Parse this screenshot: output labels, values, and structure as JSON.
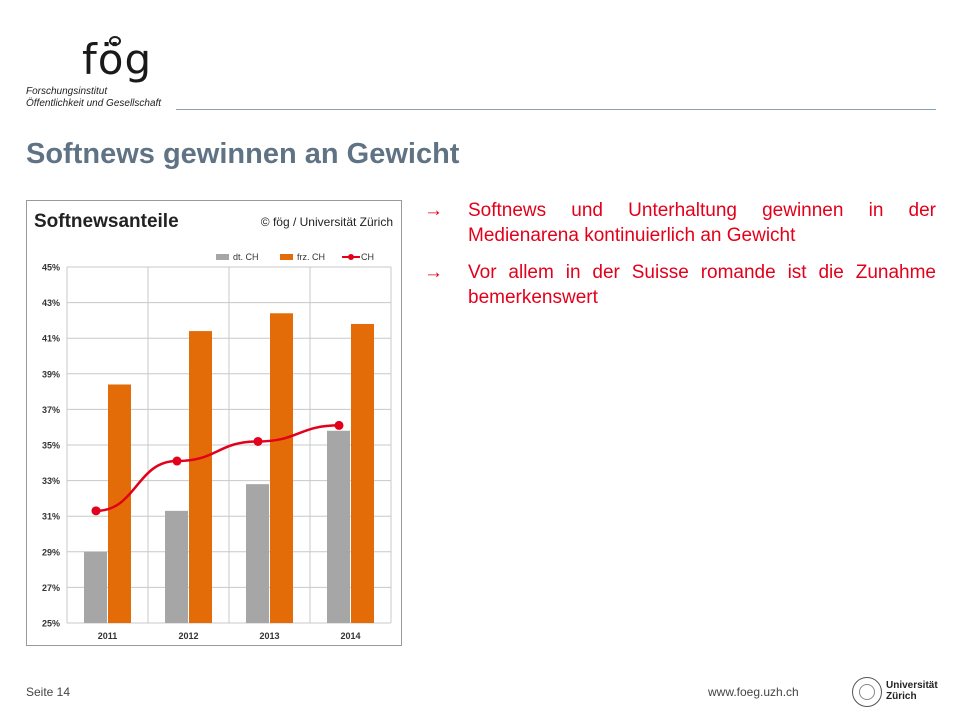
{
  "header": {
    "logo_mark": "fög",
    "logo_line1": "Forschungsinstitut",
    "logo_line2": "Öffentlichkeit und Gesellschaft"
  },
  "title": "Softnews gewinnen an Gewicht",
  "chart_data": {
    "type": "bar",
    "title": "Softnewsanteile",
    "credit": "© fög / Universität Zürich",
    "categories": [
      "2011",
      "2012",
      "2013",
      "2014"
    ],
    "series": [
      {
        "name": "dt. CH",
        "type": "bar",
        "color": "#a6a6a6",
        "values": [
          29.0,
          31.3,
          32.8,
          35.8
        ]
      },
      {
        "name": "frz. CH",
        "type": "bar",
        "color": "#e36c09",
        "values": [
          38.4,
          41.4,
          42.4,
          41.8
        ]
      },
      {
        "name": "CH",
        "type": "line",
        "color": "#e3001b",
        "values": [
          31.3,
          34.1,
          35.2,
          36.1
        ]
      }
    ],
    "ylim": [
      25,
      45
    ],
    "yticks": [
      "25%",
      "27%",
      "29%",
      "31%",
      "33%",
      "35%",
      "37%",
      "39%",
      "41%",
      "43%",
      "45%"
    ],
    "grid": true,
    "legend_position": "top-right"
  },
  "bullets": [
    {
      "arrow": "→",
      "text": "Softnews und Unterhaltung gewinnen in der Medienarena kontinuierlich an Gewicht"
    },
    {
      "arrow": "→",
      "text": "Vor allem in der Suisse romande ist die Zunahme bemerkenswert"
    }
  ],
  "footer": {
    "page": "Seite 14",
    "url": "www.foeg.uzh.ch",
    "university_line1": "Universität",
    "university_line2": "Zürich"
  }
}
